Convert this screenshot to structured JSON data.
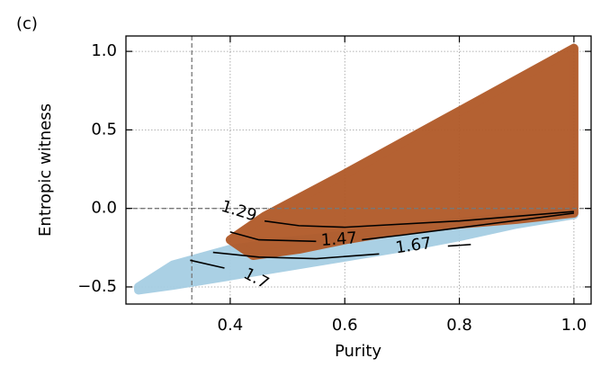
{
  "chart_data": {
    "type": "scatter",
    "panel_label": "(c)",
    "xlabel": "Purity",
    "ylabel": "Entropic witness",
    "xlim": [
      0.218,
      1.03
    ],
    "ylim": [
      -0.609,
      1.098
    ],
    "xticks": [
      0.4,
      0.6,
      0.8,
      {
        "value": 1.0,
        "label": "1.0"
      }
    ],
    "yticks": [
      {
        "value": -0.5,
        "label": "−0.5"
      },
      {
        "value": 0.0,
        "label": "0.0"
      },
      0.5,
      {
        "value": 1.0,
        "label": "1.0"
      }
    ],
    "grid": true,
    "vlines": [
      0.333
    ],
    "hlines": [
      0.0
    ],
    "series": [
      {
        "color": "#a6cee3",
        "x": [
          0.24,
          0.3,
          0.4,
          0.5,
          0.6,
          0.7,
          0.8,
          0.9,
          1.0,
          1.0,
          0.9,
          0.8,
          0.7,
          0.6,
          0.5,
          0.4,
          0.3,
          0.24
        ],
        "y": [
          -0.52,
          -0.49,
          -0.43,
          -0.37,
          -0.31,
          -0.25,
          -0.18,
          -0.1,
          -0.04,
          -0.02,
          -0.05,
          -0.09,
          -0.13,
          -0.17,
          -0.21,
          -0.26,
          -0.36,
          -0.5
        ]
      },
      {
        "color": "#b15928",
        "x": [
          0.46,
          0.6,
          0.8,
          1.0,
          1.0,
          0.9,
          0.8,
          0.7,
          0.6,
          0.52,
          0.44,
          0.4,
          0.46
        ],
        "y": [
          -0.05,
          0.22,
          0.62,
          1.02,
          -0.03,
          -0.07,
          -0.1,
          -0.14,
          -0.2,
          -0.26,
          -0.3,
          -0.2,
          -0.05
        ]
      }
    ],
    "contours": [
      {
        "level": 1.29,
        "label_x": 0.415,
        "label_y": -0.02,
        "angle": 17,
        "x": [
          0.46,
          0.52,
          0.6,
          0.8,
          1.0
        ],
        "y": [
          -0.08,
          -0.11,
          -0.12,
          -0.08,
          -0.02
        ]
      },
      {
        "level": 1.47,
        "label_x": 0.59,
        "label_y": -0.2,
        "angle": -4,
        "x": [
          0.4,
          0.45,
          0.55,
          null,
          0.63,
          0.7,
          0.85,
          1.0
        ],
        "y": [
          -0.15,
          -0.2,
          -0.21,
          null,
          -0.2,
          -0.17,
          -0.1,
          -0.03
        ]
      },
      {
        "level": 1.67,
        "label_x": 0.72,
        "label_y": -0.24,
        "angle": -8,
        "x": [
          0.37,
          0.45,
          0.55,
          0.66,
          null,
          0.78,
          0.82
        ],
        "y": [
          -0.28,
          -0.31,
          -0.32,
          -0.29,
          null,
          -0.24,
          -0.23
        ]
      },
      {
        "level": 1.7,
        "label_x": 0.445,
        "label_y": -0.45,
        "angle": 28,
        "x": [
          0.33,
          0.39
        ],
        "y": [
          -0.33,
          -0.38
        ]
      }
    ]
  }
}
